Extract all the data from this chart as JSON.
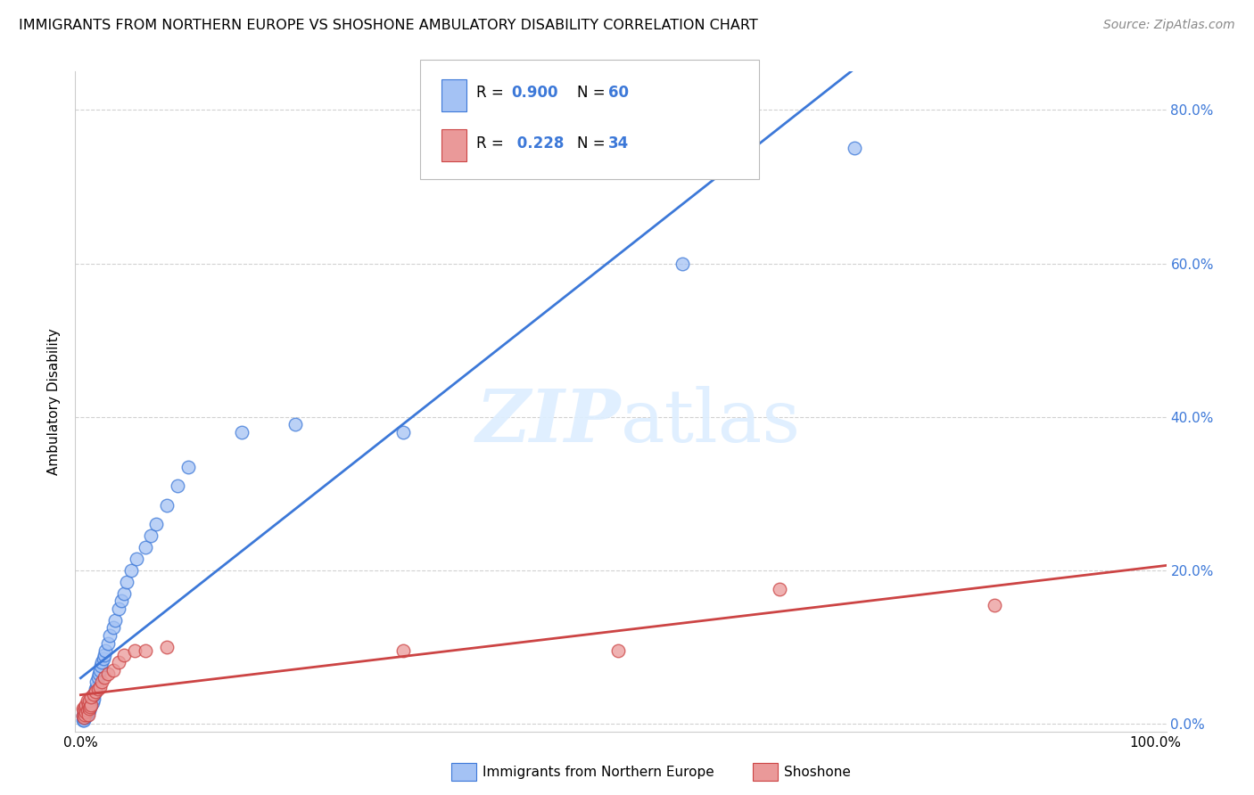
{
  "title": "IMMIGRANTS FROM NORTHERN EUROPE VS SHOSHONE AMBULATORY DISABILITY CORRELATION CHART",
  "source": "Source: ZipAtlas.com",
  "ylabel": "Ambulatory Disability",
  "blue_color": "#a4c2f4",
  "blue_edge_color": "#3c78d8",
  "pink_color": "#ea9999",
  "pink_edge_color": "#cc4444",
  "blue_line_color": "#3c78d8",
  "pink_line_color": "#cc4444",
  "bg_color": "#ffffff",
  "legend_r1": "0.900",
  "legend_n1": "60",
  "legend_r2": "0.228",
  "legend_n2": "34",
  "blue_x": [
    0.002,
    0.002,
    0.003,
    0.003,
    0.003,
    0.004,
    0.004,
    0.004,
    0.005,
    0.005,
    0.005,
    0.006,
    0.006,
    0.007,
    0.007,
    0.007,
    0.008,
    0.008,
    0.008,
    0.009,
    0.009,
    0.01,
    0.01,
    0.011,
    0.011,
    0.012,
    0.012,
    0.013,
    0.014,
    0.015,
    0.015,
    0.016,
    0.017,
    0.018,
    0.019,
    0.02,
    0.021,
    0.022,
    0.023,
    0.025,
    0.027,
    0.03,
    0.032,
    0.035,
    0.038,
    0.04,
    0.043,
    0.047,
    0.052,
    0.06,
    0.065,
    0.07,
    0.08,
    0.09,
    0.1,
    0.15,
    0.2,
    0.3,
    0.56,
    0.72
  ],
  "blue_y": [
    0.005,
    0.01,
    0.005,
    0.008,
    0.015,
    0.008,
    0.012,
    0.018,
    0.01,
    0.015,
    0.02,
    0.012,
    0.018,
    0.015,
    0.02,
    0.025,
    0.018,
    0.022,
    0.028,
    0.022,
    0.03,
    0.025,
    0.032,
    0.028,
    0.035,
    0.032,
    0.038,
    0.04,
    0.045,
    0.048,
    0.055,
    0.06,
    0.065,
    0.07,
    0.075,
    0.08,
    0.085,
    0.09,
    0.095,
    0.105,
    0.115,
    0.125,
    0.135,
    0.15,
    0.16,
    0.17,
    0.185,
    0.2,
    0.215,
    0.23,
    0.245,
    0.26,
    0.285,
    0.31,
    0.335,
    0.38,
    0.39,
    0.38,
    0.6,
    0.75
  ],
  "pink_x": [
    0.002,
    0.002,
    0.003,
    0.003,
    0.004,
    0.004,
    0.005,
    0.005,
    0.006,
    0.006,
    0.007,
    0.007,
    0.008,
    0.008,
    0.009,
    0.01,
    0.01,
    0.012,
    0.014,
    0.016,
    0.018,
    0.02,
    0.022,
    0.025,
    0.03,
    0.035,
    0.04,
    0.05,
    0.06,
    0.08,
    0.3,
    0.5,
    0.65,
    0.85
  ],
  "pink_y": [
    0.01,
    0.02,
    0.008,
    0.018,
    0.012,
    0.022,
    0.015,
    0.025,
    0.018,
    0.03,
    0.012,
    0.025,
    0.02,
    0.03,
    0.022,
    0.025,
    0.035,
    0.038,
    0.042,
    0.045,
    0.048,
    0.055,
    0.06,
    0.065,
    0.07,
    0.08,
    0.09,
    0.095,
    0.095,
    0.1,
    0.095,
    0.095,
    0.175,
    0.155
  ],
  "xlim": [
    0.0,
    1.0
  ],
  "ylim": [
    0.0,
    0.85
  ],
  "yticks": [
    0.0,
    0.2,
    0.4,
    0.6,
    0.8
  ],
  "right_ytick_labels": [
    "0.0%",
    "20.0%",
    "40.0%",
    "60.0%",
    "80.0%"
  ],
  "xtick_positions": [
    0.0,
    0.25,
    0.5,
    0.75,
    1.0
  ],
  "xtick_labels": [
    "0.0%",
    "",
    "",
    "",
    "100.0%"
  ]
}
